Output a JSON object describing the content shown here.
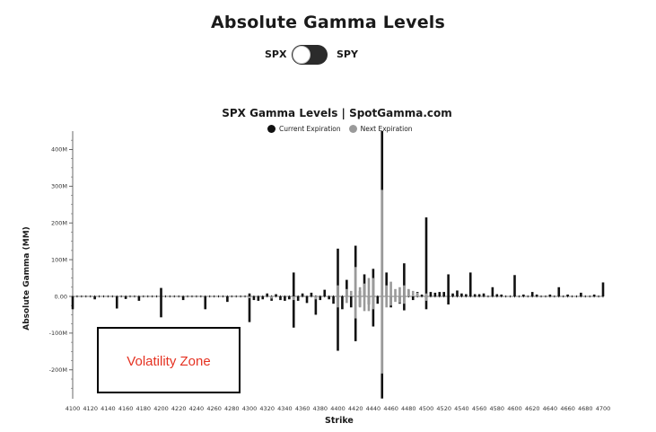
{
  "page": {
    "title": "Absolute Gamma Levels"
  },
  "toggle": {
    "left_label": "SPX",
    "right_label": "SPY",
    "selected": "SPX"
  },
  "annotation": {
    "text": "Volatility Zone",
    "color": "#e53222"
  },
  "colors": {
    "current": "#111111",
    "next": "#9a9a9a"
  },
  "chart_data": {
    "type": "bar",
    "title": "SPX Gamma Levels | SpotGamma.com",
    "xlabel": "Strike",
    "ylabel": "Absolute Gamma (MM)",
    "ylim": [
      -280,
      450
    ],
    "yticks": [
      400,
      300,
      200,
      100,
      0,
      -100,
      -200
    ],
    "ytick_labels": [
      "400M",
      "300M",
      "200M",
      "100M",
      "0.00",
      "-100M",
      "-200M"
    ],
    "xlim": [
      4100,
      4700
    ],
    "xticks": [
      4100,
      4120,
      4140,
      4160,
      4180,
      4200,
      4220,
      4240,
      4260,
      4280,
      4300,
      4320,
      4340,
      4360,
      4380,
      4400,
      4420,
      4440,
      4460,
      4480,
      4500,
      4520,
      4540,
      4560,
      4580,
      4600,
      4620,
      4640,
      4660,
      4680,
      4700
    ],
    "legend": [
      {
        "name": "Current Expiration",
        "color": "#111111"
      },
      {
        "name": "Next Expiration",
        "color": "#9a9a9a"
      }
    ],
    "legend_position": "top-center",
    "grid": false,
    "series": [
      {
        "name": "Current Expiration",
        "points": [
          {
            "x": 4100,
            "y": -35
          },
          {
            "x": 4125,
            "y": -8
          },
          {
            "x": 4150,
            "y": -33
          },
          {
            "x": 4160,
            "y": -7
          },
          {
            "x": 4175,
            "y": -12
          },
          {
            "x": 4200,
            "y": 23
          },
          {
            "x": 4200,
            "y": -57
          },
          {
            "x": 4225,
            "y": -10
          },
          {
            "x": 4250,
            "y": -35
          },
          {
            "x": 4275,
            "y": -15
          },
          {
            "x": 4300,
            "y": 8
          },
          {
            "x": 4300,
            "y": -70
          },
          {
            "x": 4305,
            "y": -10
          },
          {
            "x": 4310,
            "y": -12
          },
          {
            "x": 4315,
            "y": -8
          },
          {
            "x": 4320,
            "y": 8
          },
          {
            "x": 4325,
            "y": -12
          },
          {
            "x": 4330,
            "y": 6
          },
          {
            "x": 4335,
            "y": -10
          },
          {
            "x": 4340,
            "y": -12
          },
          {
            "x": 4345,
            "y": -8
          },
          {
            "x": 4350,
            "y": 65
          },
          {
            "x": 4350,
            "y": -85
          },
          {
            "x": 4355,
            "y": -12
          },
          {
            "x": 4360,
            "y": 8
          },
          {
            "x": 4365,
            "y": -18
          },
          {
            "x": 4370,
            "y": 10
          },
          {
            "x": 4375,
            "y": -50
          },
          {
            "x": 4380,
            "y": -10
          },
          {
            "x": 4385,
            "y": 18
          },
          {
            "x": 4390,
            "y": -8
          },
          {
            "x": 4395,
            "y": -20
          },
          {
            "x": 4400,
            "y": 130
          },
          {
            "x": 4400,
            "y": -148
          },
          {
            "x": 4405,
            "y": -35
          },
          {
            "x": 4410,
            "y": 45
          },
          {
            "x": 4415,
            "y": -30
          },
          {
            "x": 4420,
            "y": 138
          },
          {
            "x": 4420,
            "y": -122
          },
          {
            "x": 4425,
            "y": 15
          },
          {
            "x": 4425,
            "y": -28
          },
          {
            "x": 4430,
            "y": 60
          },
          {
            "x": 4435,
            "y": -22
          },
          {
            "x": 4440,
            "y": 75
          },
          {
            "x": 4440,
            "y": -82
          },
          {
            "x": 4445,
            "y": -20
          },
          {
            "x": 4450,
            "y": 450
          },
          {
            "x": 4450,
            "y": -278
          },
          {
            "x": 4455,
            "y": 65
          },
          {
            "x": 4460,
            "y": -30
          },
          {
            "x": 4470,
            "y": -20
          },
          {
            "x": 4475,
            "y": 90
          },
          {
            "x": 4475,
            "y": -38
          },
          {
            "x": 4480,
            "y": 18
          },
          {
            "x": 4485,
            "y": -10
          },
          {
            "x": 4490,
            "y": 12
          },
          {
            "x": 4495,
            "y": 5
          },
          {
            "x": 4500,
            "y": 215
          },
          {
            "x": 4500,
            "y": -35
          },
          {
            "x": 4505,
            "y": 12
          },
          {
            "x": 4510,
            "y": 10
          },
          {
            "x": 4515,
            "y": 12
          },
          {
            "x": 4520,
            "y": 12
          },
          {
            "x": 4525,
            "y": 60
          },
          {
            "x": 4525,
            "y": -22
          },
          {
            "x": 4530,
            "y": 8
          },
          {
            "x": 4535,
            "y": 16
          },
          {
            "x": 4540,
            "y": 8
          },
          {
            "x": 4545,
            "y": 6
          },
          {
            "x": 4550,
            "y": 65
          },
          {
            "x": 4555,
            "y": 6
          },
          {
            "x": 4560,
            "y": 6
          },
          {
            "x": 4565,
            "y": 8
          },
          {
            "x": 4575,
            "y": 25
          },
          {
            "x": 4580,
            "y": 6
          },
          {
            "x": 4585,
            "y": 5
          },
          {
            "x": 4600,
            "y": 58
          },
          {
            "x": 4610,
            "y": 5
          },
          {
            "x": 4620,
            "y": 12
          },
          {
            "x": 4625,
            "y": 5
          },
          {
            "x": 4640,
            "y": 5
          },
          {
            "x": 4650,
            "y": 25
          },
          {
            "x": 4660,
            "y": 5
          },
          {
            "x": 4675,
            "y": 10
          },
          {
            "x": 4690,
            "y": 5
          },
          {
            "x": 4700,
            "y": 38
          }
        ]
      },
      {
        "name": "Next Expiration",
        "points": [
          {
            "x": 4300,
            "y": -5
          },
          {
            "x": 4325,
            "y": -6
          },
          {
            "x": 4350,
            "y": -10
          },
          {
            "x": 4375,
            "y": -8
          },
          {
            "x": 4400,
            "y": 30
          },
          {
            "x": 4400,
            "y": -30
          },
          {
            "x": 4410,
            "y": 20
          },
          {
            "x": 4410,
            "y": -18
          },
          {
            "x": 4415,
            "y": 15
          },
          {
            "x": 4420,
            "y": 80
          },
          {
            "x": 4420,
            "y": -60
          },
          {
            "x": 4425,
            "y": 25
          },
          {
            "x": 4425,
            "y": -30
          },
          {
            "x": 4430,
            "y": 35
          },
          {
            "x": 4430,
            "y": -40
          },
          {
            "x": 4435,
            "y": 50
          },
          {
            "x": 4435,
            "y": -40
          },
          {
            "x": 4440,
            "y": 50
          },
          {
            "x": 4440,
            "y": -35
          },
          {
            "x": 4450,
            "y": 290
          },
          {
            "x": 4450,
            "y": -210
          },
          {
            "x": 4455,
            "y": 30
          },
          {
            "x": 4455,
            "y": -30
          },
          {
            "x": 4460,
            "y": 40
          },
          {
            "x": 4460,
            "y": -25
          },
          {
            "x": 4465,
            "y": 20
          },
          {
            "x": 4465,
            "y": -15
          },
          {
            "x": 4470,
            "y": 25
          },
          {
            "x": 4470,
            "y": -18
          },
          {
            "x": 4475,
            "y": 30
          },
          {
            "x": 4475,
            "y": -20
          },
          {
            "x": 4480,
            "y": 20
          },
          {
            "x": 4485,
            "y": 15
          },
          {
            "x": 4490,
            "y": 10
          },
          {
            "x": 4500,
            "y": 8
          },
          {
            "x": 4500,
            "y": -12
          }
        ]
      }
    ]
  }
}
